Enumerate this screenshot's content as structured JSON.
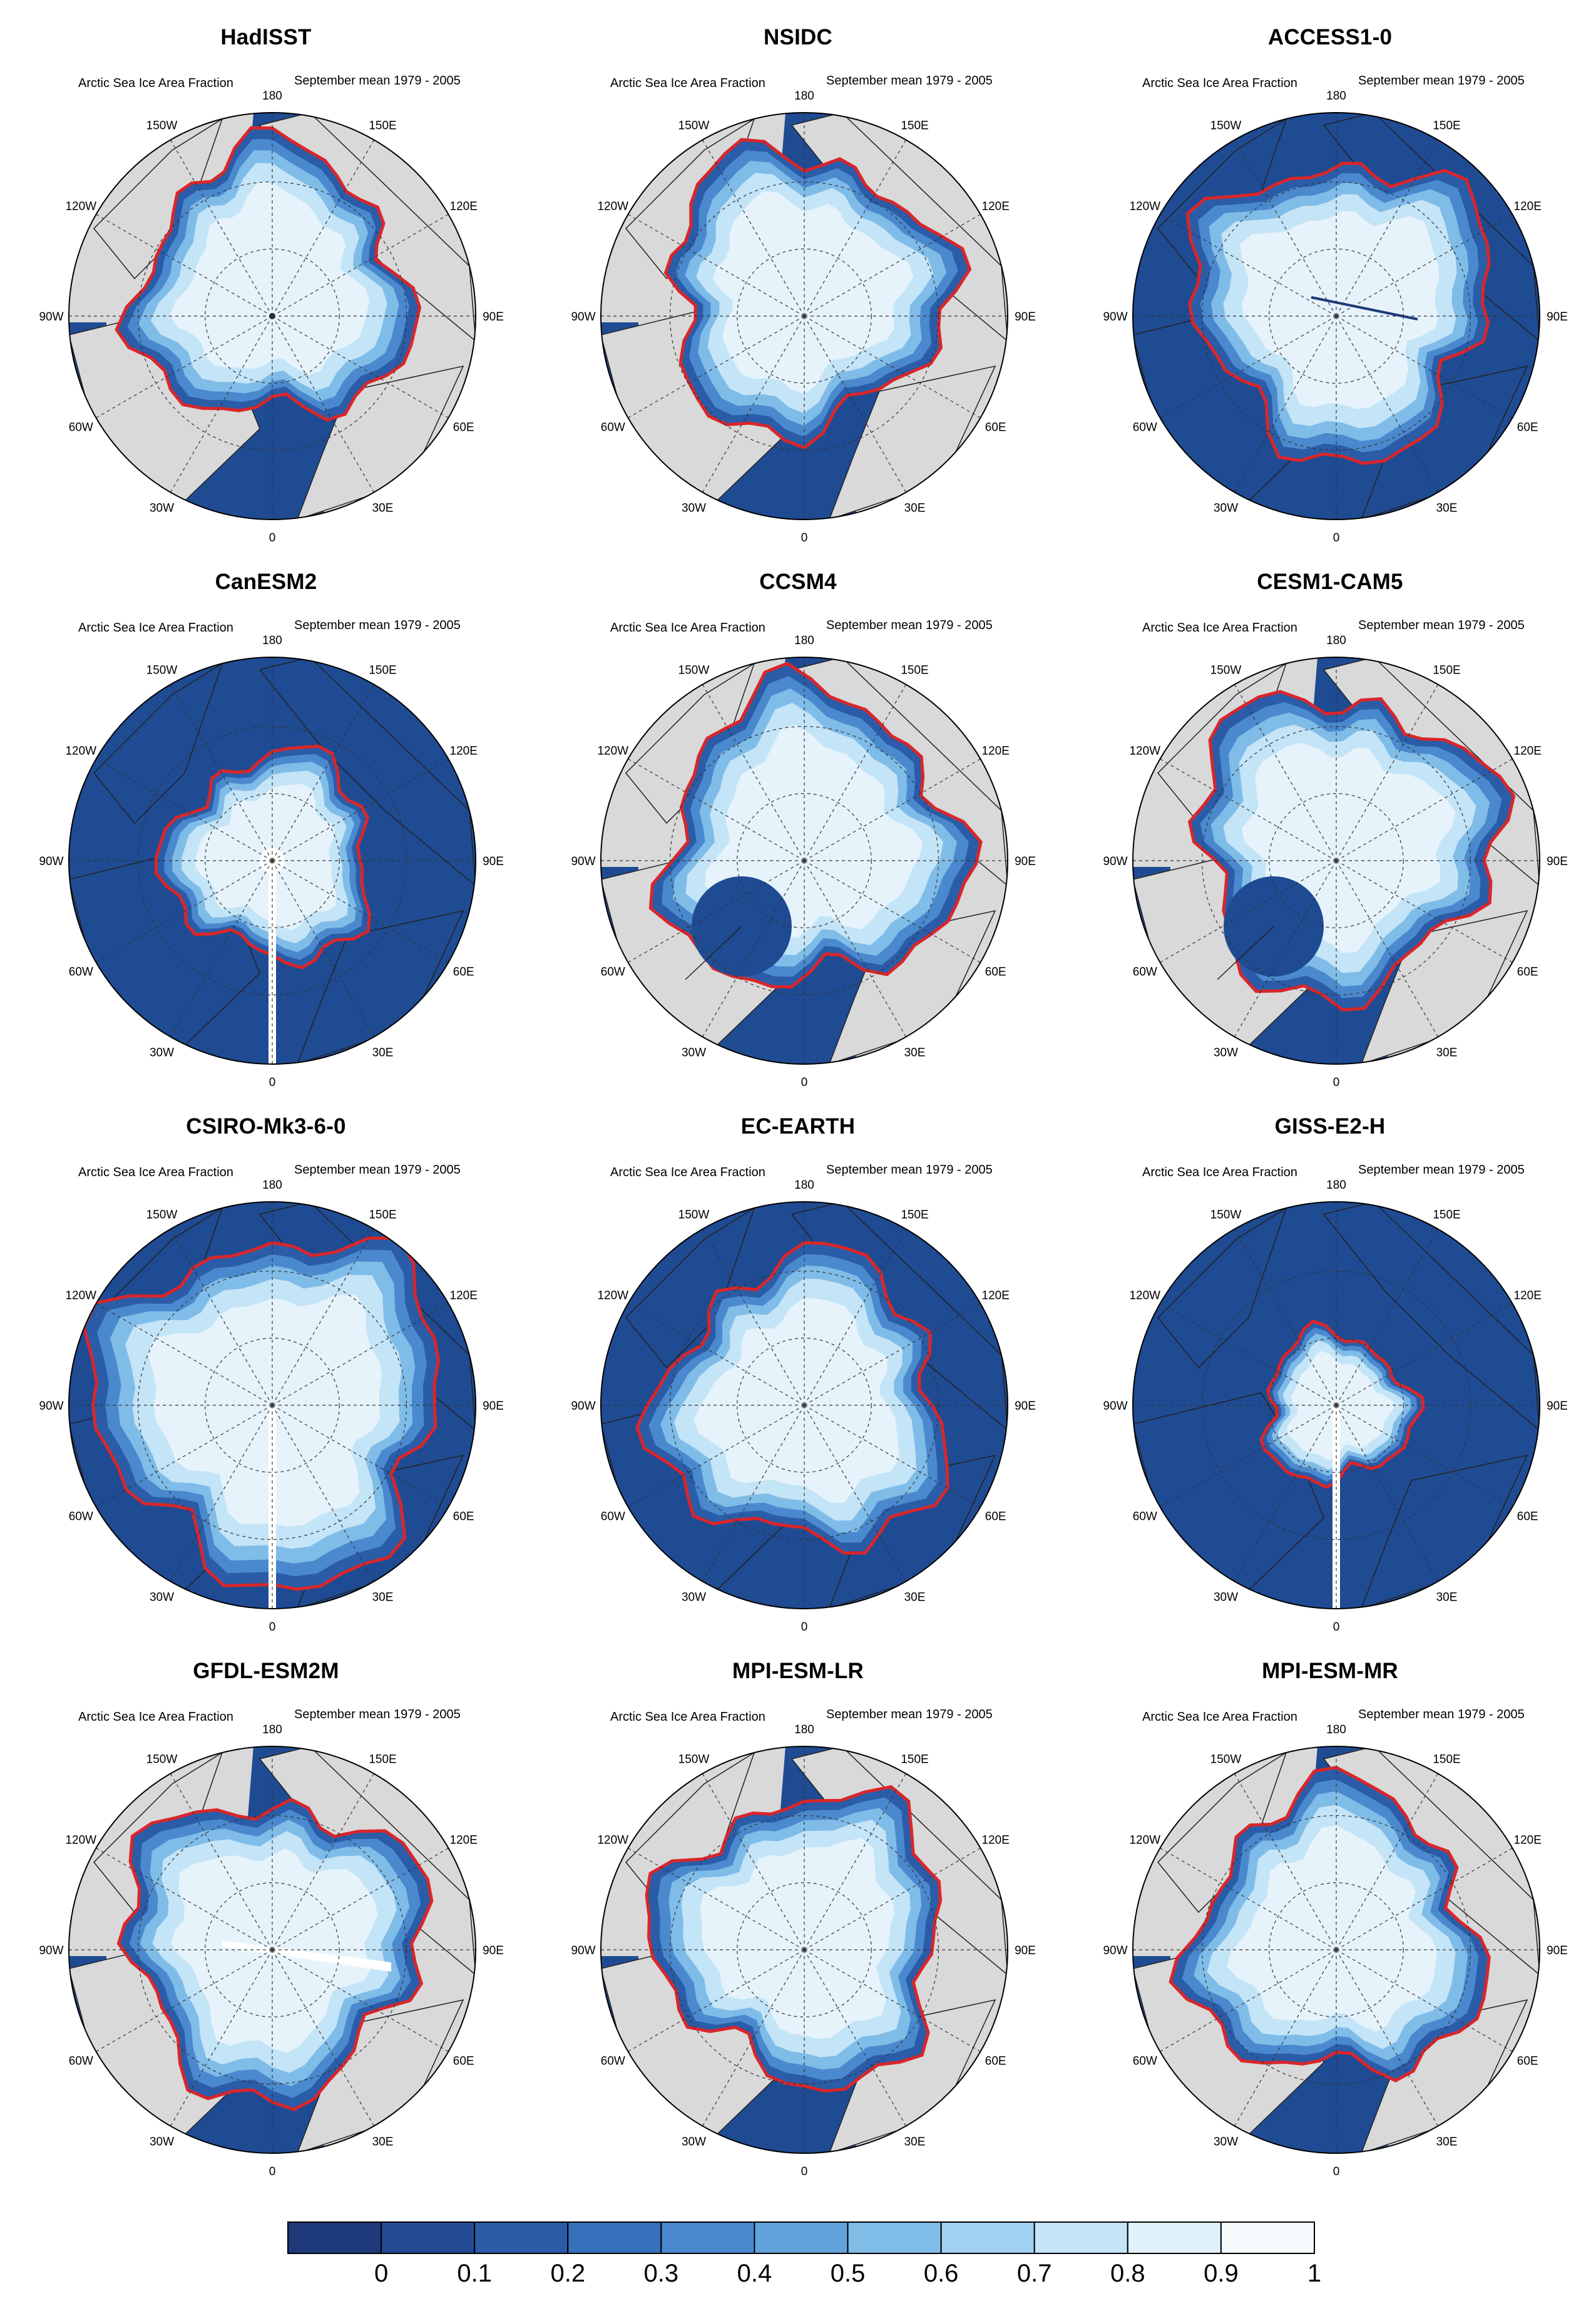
{
  "common": {
    "subtitle_left": "Arctic Sea Ice Area Fraction",
    "subtitle_right": "September mean 1979 - 2005",
    "lon_labels": [
      "180",
      "150E",
      "120E",
      "90E",
      "60E",
      "30E",
      "0",
      "30W",
      "60W",
      "90W",
      "120W",
      "150W"
    ]
  },
  "panels": [
    {
      "title": "HadISST",
      "ocean": "land-gray",
      "ice_scale": 0.66,
      "ice_dx": 0,
      "ice_dy": -45,
      "edge": "red",
      "hole": "dot"
    },
    {
      "title": "NSIDC",
      "ocean": "land-gray",
      "ice_scale": 0.68,
      "ice_dx": 0,
      "ice_dy": -40,
      "edge": "red",
      "hole": "none"
    },
    {
      "title": "ACCESS1-0",
      "ocean": "blue",
      "ice_scale": 0.72,
      "ice_dx": 10,
      "ice_dy": -20,
      "edge": "red",
      "hole": "line"
    },
    {
      "title": "CanESM2",
      "ocean": "blue",
      "ice_scale": 0.5,
      "ice_dx": 0,
      "ice_dy": -5,
      "edge": "red",
      "hole": "circle-stripe"
    },
    {
      "title": "CCSM4",
      "ocean": "land-gray",
      "ice_scale": 0.72,
      "ice_dx": 10,
      "ice_dy": -30,
      "edge": "red",
      "hole": "greenland-disk"
    },
    {
      "title": "CESM1-CAM5",
      "ocean": "land-gray",
      "ice_scale": 0.73,
      "ice_dx": 10,
      "ice_dy": -30,
      "edge": "red",
      "hole": "greenland-disk"
    },
    {
      "title": "CSIRO-Mk3-6-0",
      "ocean": "blue",
      "ice_scale": 0.84,
      "ice_dx": 0,
      "ice_dy": 0,
      "edge": "red",
      "hole": "stripe"
    },
    {
      "title": "EC-EARTH",
      "ocean": "blue",
      "ice_scale": 0.7,
      "ice_dx": 0,
      "ice_dy": 0,
      "edge": "red",
      "hole": "none"
    },
    {
      "title": "GISS-E2-H",
      "ocean": "blue",
      "ice_scale": 0.36,
      "ice_dx": 0,
      "ice_dy": 5,
      "edge": "red",
      "hole": "dot-stripe"
    },
    {
      "title": "GFDL-ESM2M",
      "ocean": "land-gray",
      "ice_scale": 0.72,
      "ice_dx": 0,
      "ice_dy": -10,
      "edge": "red",
      "hole": "gfdl-line"
    },
    {
      "title": "MPI-ESM-LR",
      "ocean": "land-gray",
      "ice_scale": 0.7,
      "ice_dx": 0,
      "ice_dy": -20,
      "edge": "red",
      "hole": "none"
    },
    {
      "title": "MPI-ESM-MR",
      "ocean": "land-gray",
      "ice_scale": 0.7,
      "ice_dx": 0,
      "ice_dy": -20,
      "edge": "red",
      "hole": "none"
    }
  ],
  "colorbar": {
    "labels": [
      "0",
      "0.1",
      "0.2",
      "0.3",
      "0.4",
      "0.5",
      "0.6",
      "0.7",
      "0.8",
      "0.9",
      "1"
    ],
    "colors": [
      "#1e3a7b",
      "#234c94",
      "#2a5ca8",
      "#3671bb",
      "#4a89cd",
      "#62a3dc",
      "#80bce8",
      "#a2d2f1",
      "#c4e4f7",
      "#e1f1fb",
      "#f6fbfe"
    ]
  },
  "palette": {
    "ocean": "#1f4b93",
    "land": "#d9d9d9",
    "edge": "#d9262a"
  }
}
